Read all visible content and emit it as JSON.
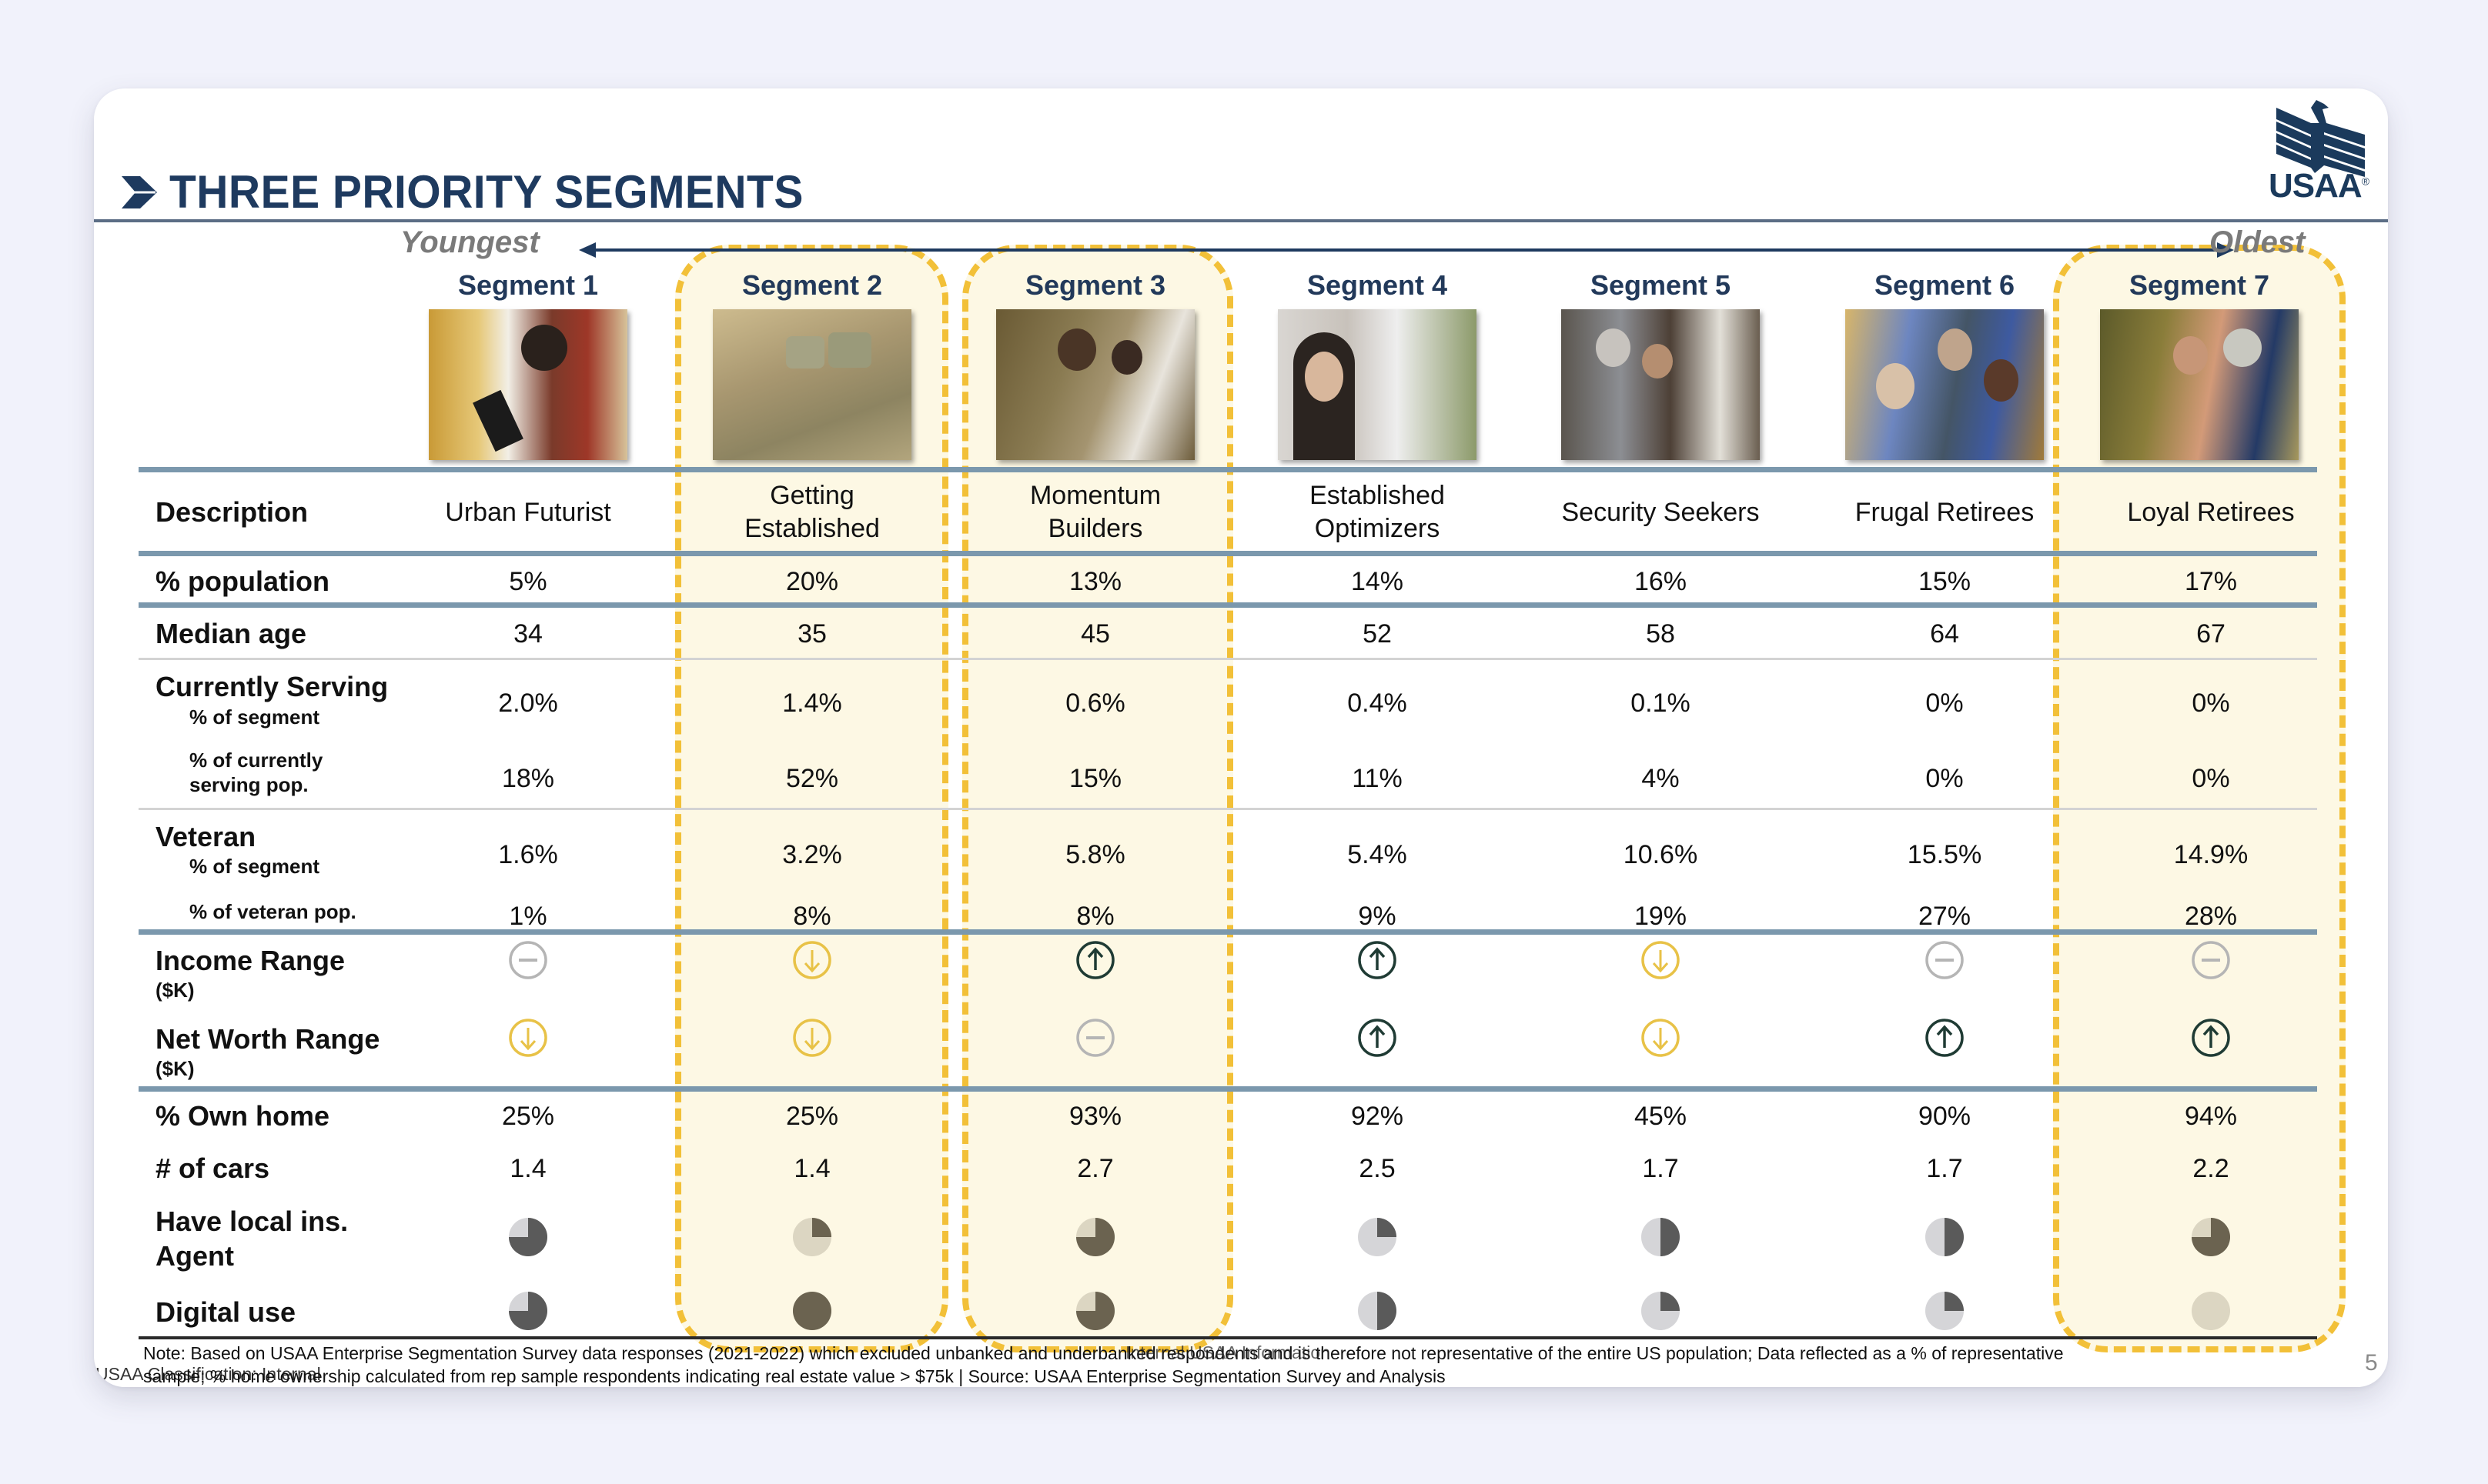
{
  "slide": {
    "title": "THREE PRIORITY SEGMENTS",
    "logo": {
      "text": "USAA",
      "registered": "®",
      "icon": "eagle-stripes-logo-icon"
    },
    "age_axis": {
      "left_label": "Youngest",
      "right_label": "Oldest",
      "icon": "double-arrow-icon"
    },
    "page_number": "5",
    "classification": "USAA Classification: Internal",
    "internal_label": "Internal USAA Information",
    "note_line1": "Note: Based on USAA Enterprise Segmentation Survey data responses (2021-2022) which excluded unbanked and underbanked respondents and is therefore not representative of the entire US population; Data reflected as a % of representative",
    "note_line2": "sample; % home ownership calculated from rep sample respondents indicating real estate value > $75k | Source: USAA Enterprise Segmentation Survey and Analysis"
  },
  "colors": {
    "title_navy": "#1e3a5f",
    "highlight_fill": "#fdf8e4",
    "highlight_dash": "#f2c038",
    "rule_blue": "#7b98ad",
    "arrow_up": "#1f3b34",
    "arrow_down": "#e8c247",
    "neutral": "#b5b5b5",
    "harvey_dark": "#5a5a5a",
    "harvey_light": "#d5d5d8",
    "harvey_dark_hl": "#6b6350",
    "harvey_light_hl": "#dcd6c2"
  },
  "highlighted_segments": [
    2,
    3,
    7
  ],
  "row_labels": {
    "description": "Description",
    "population": "% population",
    "median_age": "Median age",
    "currently_serving": "Currently Serving",
    "cs_pct_segment": "% of segment",
    "cs_pct_pop_1": "% of currently",
    "cs_pct_pop_2": "serving pop.",
    "veteran": "Veteran",
    "vet_pct_segment": "% of segment",
    "vet_pct_pop": "% of veteran pop.",
    "income": "Income Range",
    "income_unit": "($K)",
    "net_worth": "Net Worth Range",
    "net_worth_unit": "($K)",
    "own_home": "% Own home",
    "cars": "# of cars",
    "local_agent_1": "Have local ins.",
    "local_agent_2": "Agent",
    "digital": "Digital use"
  },
  "segments": [
    {
      "name": "Segment 1",
      "photo": "man-with-tablet-photo",
      "desc1": "Urban Futurist",
      "desc2": "",
      "population": "5%",
      "median_age": "34",
      "cs_segment": "2.0%",
      "cs_pop": "18%",
      "vet_segment": "1.6%",
      "vet_pop": "1%",
      "income": "neutral",
      "net_worth": "down",
      "own_home": "25%",
      "cars": "1.4",
      "local_agent": 0.75,
      "digital": 0.75
    },
    {
      "name": "Segment 2",
      "photo": "soldiers-smiling-photo",
      "desc1": "Getting",
      "desc2": "Established",
      "population": "20%",
      "median_age": "35",
      "cs_segment": "1.4%",
      "cs_pop": "52%",
      "vet_segment": "3.2%",
      "vet_pop": "8%",
      "income": "down",
      "net_worth": "down",
      "own_home": "25%",
      "cars": "1.4",
      "local_agent": 0.25,
      "digital": 1.0
    },
    {
      "name": "Segment 3",
      "photo": "soldier-with-daughter-photo",
      "desc1": "Momentum",
      "desc2": "Builders",
      "population": "13%",
      "median_age": "45",
      "cs_segment": "0.6%",
      "cs_pop": "15%",
      "vet_segment": "5.8%",
      "vet_pop": "8%",
      "income": "up",
      "net_worth": "neutral",
      "own_home": "93%",
      "cars": "2.7",
      "local_agent": 0.75,
      "digital": 0.75
    },
    {
      "name": "Segment 4",
      "photo": "woman-outside-house-photo",
      "desc1": "Established",
      "desc2": "Optimizers",
      "population": "14%",
      "median_age": "52",
      "cs_segment": "0.4%",
      "cs_pop": "11%",
      "vet_segment": "5.4%",
      "vet_pop": "9%",
      "income": "up",
      "net_worth": "up",
      "own_home": "92%",
      "cars": "2.5",
      "local_agent": 0.25,
      "digital": 0.5
    },
    {
      "name": "Segment 5",
      "photo": "couple-on-porch-photo",
      "desc1": "Security Seekers",
      "desc2": "",
      "population": "16%",
      "median_age": "58",
      "cs_segment": "0.1%",
      "cs_pop": "4%",
      "vet_segment": "10.6%",
      "vet_pop": "19%",
      "income": "down",
      "net_worth": "down",
      "own_home": "45%",
      "cars": "1.7",
      "local_agent": 0.5,
      "digital": 0.25
    },
    {
      "name": "Segment 6",
      "photo": "retirees-group-photo",
      "desc1": "Frugal Retirees",
      "desc2": "",
      "population": "15%",
      "median_age": "64",
      "cs_segment": "0%",
      "cs_pop": "0%",
      "vet_segment": "15.5%",
      "vet_pop": "27%",
      "income": "neutral",
      "net_worth": "up",
      "own_home": "90%",
      "cars": "1.7",
      "local_agent": 0.5,
      "digital": 0.25
    },
    {
      "name": "Segment 7",
      "photo": "golfers-photo",
      "desc1": "Loyal Retirees",
      "desc2": "",
      "population": "17%",
      "median_age": "67",
      "cs_segment": "0%",
      "cs_pop": "0%",
      "vet_segment": "14.9%",
      "vet_pop": "28%",
      "income": "neutral",
      "net_worth": "up",
      "own_home": "94%",
      "cars": "2.2",
      "local_agent": 0.75,
      "digital": 0.0
    }
  ]
}
